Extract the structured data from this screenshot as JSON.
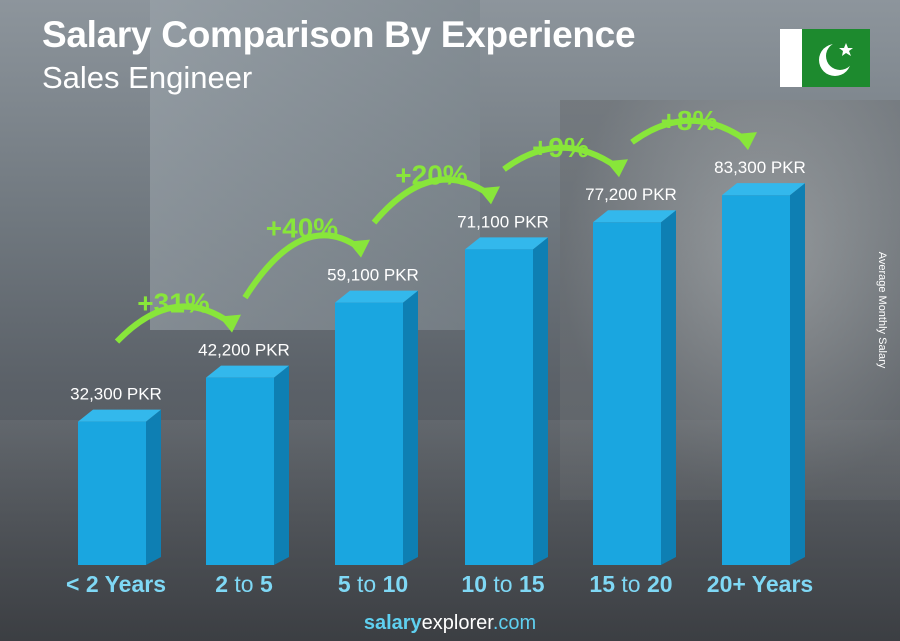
{
  "title": "Salary Comparison By Experience",
  "subtitle": "Sales Engineer",
  "flag": "pakistan-flag",
  "footer": {
    "brand_bold": "salary",
    "brand_rest": "explorer",
    ".com": ".com",
    "domain": ".com"
  },
  "chart_data": {
    "type": "bar",
    "title": "Salary Comparison By Experience",
    "subtitle": "Sales Engineer",
    "ylabel": "Average Monthly Salary",
    "xlabel": "",
    "categories": [
      [
        "< 2 Years",
        "",
        ""
      ],
      [
        "2",
        " to ",
        "5"
      ],
      [
        "5",
        " to ",
        "10"
      ],
      [
        "10",
        " to ",
        "15"
      ],
      [
        "15",
        " to ",
        "20"
      ],
      [
        "20+ Years",
        "",
        ""
      ]
    ],
    "values": [
      32300,
      42200,
      59100,
      71100,
      77200,
      83300
    ],
    "value_labels": [
      "32,300 PKR",
      "42,200 PKR",
      "59,100 PKR",
      "71,100 PKR",
      "77,200 PKR",
      "83,300 PKR"
    ],
    "changes": [
      "+31%",
      "+40%",
      "+20%",
      "+9%",
      "+8%"
    ],
    "unit": "PKR",
    "colors": {
      "bar": "#1aa6e0",
      "bar_side": "#0e7fb3",
      "bar_top": "#33b8ec",
      "change": "#88e63a",
      "category": "#7fd8f5"
    }
  }
}
